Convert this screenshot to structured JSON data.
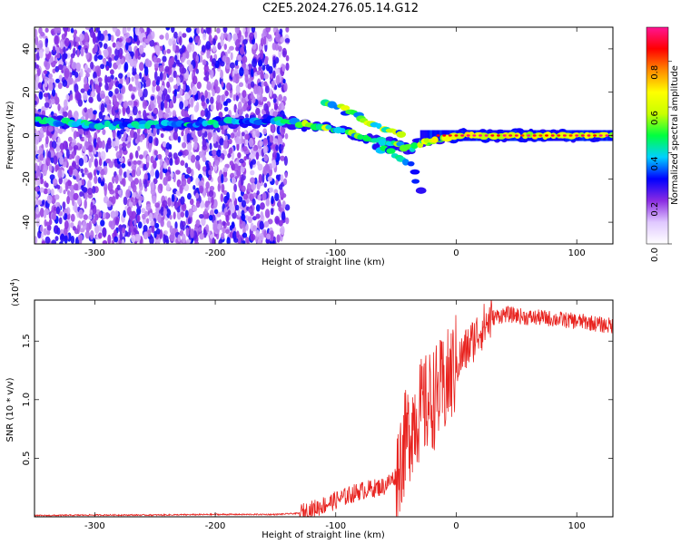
{
  "title": "C2E5.2024.276.05.14.G12",
  "chart_data": [
    {
      "type": "heatmap",
      "xlabel": "Height of straight line (km)",
      "ylabel": "Frequency (Hz)",
      "xlim": [
        -350,
        130
      ],
      "ylim": [
        -50,
        50
      ],
      "x_ticks": [
        -300,
        -200,
        -100,
        0,
        100
      ],
      "y_ticks": [
        -40,
        -20,
        0,
        20,
        40
      ],
      "colorbar": {
        "label": "Normalized spectral amplitude",
        "range": [
          0.0,
          0.95
        ],
        "ticks": [
          "0.0",
          "0.2",
          "0.4",
          "0.6",
          "0.8"
        ],
        "tick_values": [
          0.0,
          0.2,
          0.4,
          0.6,
          0.8
        ],
        "colors": [
          "#ffffff",
          "#e0c8ff",
          "#8a2be2",
          "#0000ff",
          "#00d0ff",
          "#00ff40",
          "#c8ff00",
          "#ffff00",
          "#ff8c00",
          "#ff0000",
          "#ff1493"
        ]
      },
      "features": [
        {
          "name": "broadband noise",
          "x_range": [
            -350,
            -140
          ],
          "freq_range": [
            -50,
            50
          ],
          "amplitude": 0.15
        },
        {
          "name": "signal track",
          "points": [
            [
              -350,
              7
            ],
            [
              -300,
              5
            ],
            [
              -250,
              5
            ],
            [
              -200,
              6
            ],
            [
              -150,
              7
            ],
            [
              -130,
              5
            ],
            [
              -100,
              3
            ],
            [
              -80,
              0
            ],
            [
              -60,
              -3
            ],
            [
              -40,
              -6
            ],
            [
              -30,
              -3
            ],
            [
              0,
              0
            ],
            [
              50,
              0
            ],
            [
              130,
              0
            ]
          ]
        },
        {
          "name": "upper branch",
          "points": [
            [
              -110,
              15
            ],
            [
              -95,
              12
            ],
            [
              -80,
              8
            ],
            [
              -70,
              5
            ],
            [
              -55,
              2
            ],
            [
              -45,
              0
            ]
          ]
        },
        {
          "name": "lower branch",
          "points": [
            [
              -70,
              -5
            ],
            [
              -55,
              -8
            ],
            [
              -40,
              -14
            ],
            [
              -33,
              -22
            ],
            [
              -30,
              -27
            ]
          ]
        }
      ]
    },
    {
      "type": "line",
      "xlabel": "Height of straight line (km)",
      "ylabel": "SNR (10 * v/v)",
      "multiplier_label": "(x10",
      "multiplier_exp": "4",
      "xlim": [
        -350,
        130
      ],
      "ylim": [
        0,
        1.85
      ],
      "x_ticks": [
        -300,
        -200,
        -100,
        0,
        100
      ],
      "y_ticks": [
        "0.5",
        "1.0",
        "1.5"
      ],
      "y_tick_values": [
        0.5,
        1.0,
        1.5
      ],
      "series": [
        {
          "color": "#e8231f",
          "x": [
            -350,
            -300,
            -250,
            -200,
            -150,
            -130,
            -120,
            -110,
            -100,
            -90,
            -80,
            -70,
            -60,
            -50,
            -45,
            -40,
            -35,
            -30,
            -25,
            -20,
            -15,
            -10,
            -5,
            0,
            10,
            20,
            30,
            40,
            50,
            60,
            70,
            80,
            90,
            100,
            110,
            120,
            130
          ],
          "y": [
            0.01,
            0.015,
            0.015,
            0.02,
            0.02,
            0.03,
            0.06,
            0.1,
            0.14,
            0.18,
            0.22,
            0.24,
            0.26,
            0.35,
            0.55,
            0.7,
            0.85,
            0.9,
            0.95,
            1.0,
            1.05,
            1.1,
            1.2,
            1.3,
            1.45,
            1.6,
            1.7,
            1.73,
            1.72,
            1.7,
            1.7,
            1.69,
            1.68,
            1.67,
            1.66,
            1.64,
            1.63
          ]
        }
      ]
    }
  ]
}
